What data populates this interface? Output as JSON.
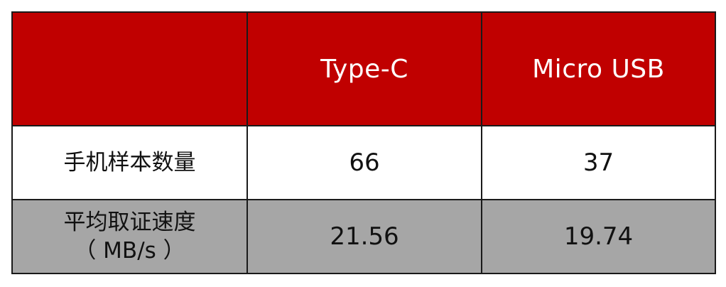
{
  "table": {
    "header": {
      "corner": "",
      "columns": [
        "Type-C",
        "Micro USB"
      ]
    },
    "rows": [
      {
        "label_lines": [
          "手机样本数量"
        ],
        "values": [
          "66",
          "37"
        ]
      },
      {
        "label_lines": [
          "平均取证速度",
          "（ MB/s ）"
        ],
        "values": [
          "21.56",
          "19.74"
        ]
      }
    ]
  },
  "colors": {
    "header_bg": "#c00000",
    "header_text": "#ffffff",
    "row1_bg": "#ffffff",
    "row2_bg": "#a6a6a6",
    "border": "#1a1a1a"
  }
}
